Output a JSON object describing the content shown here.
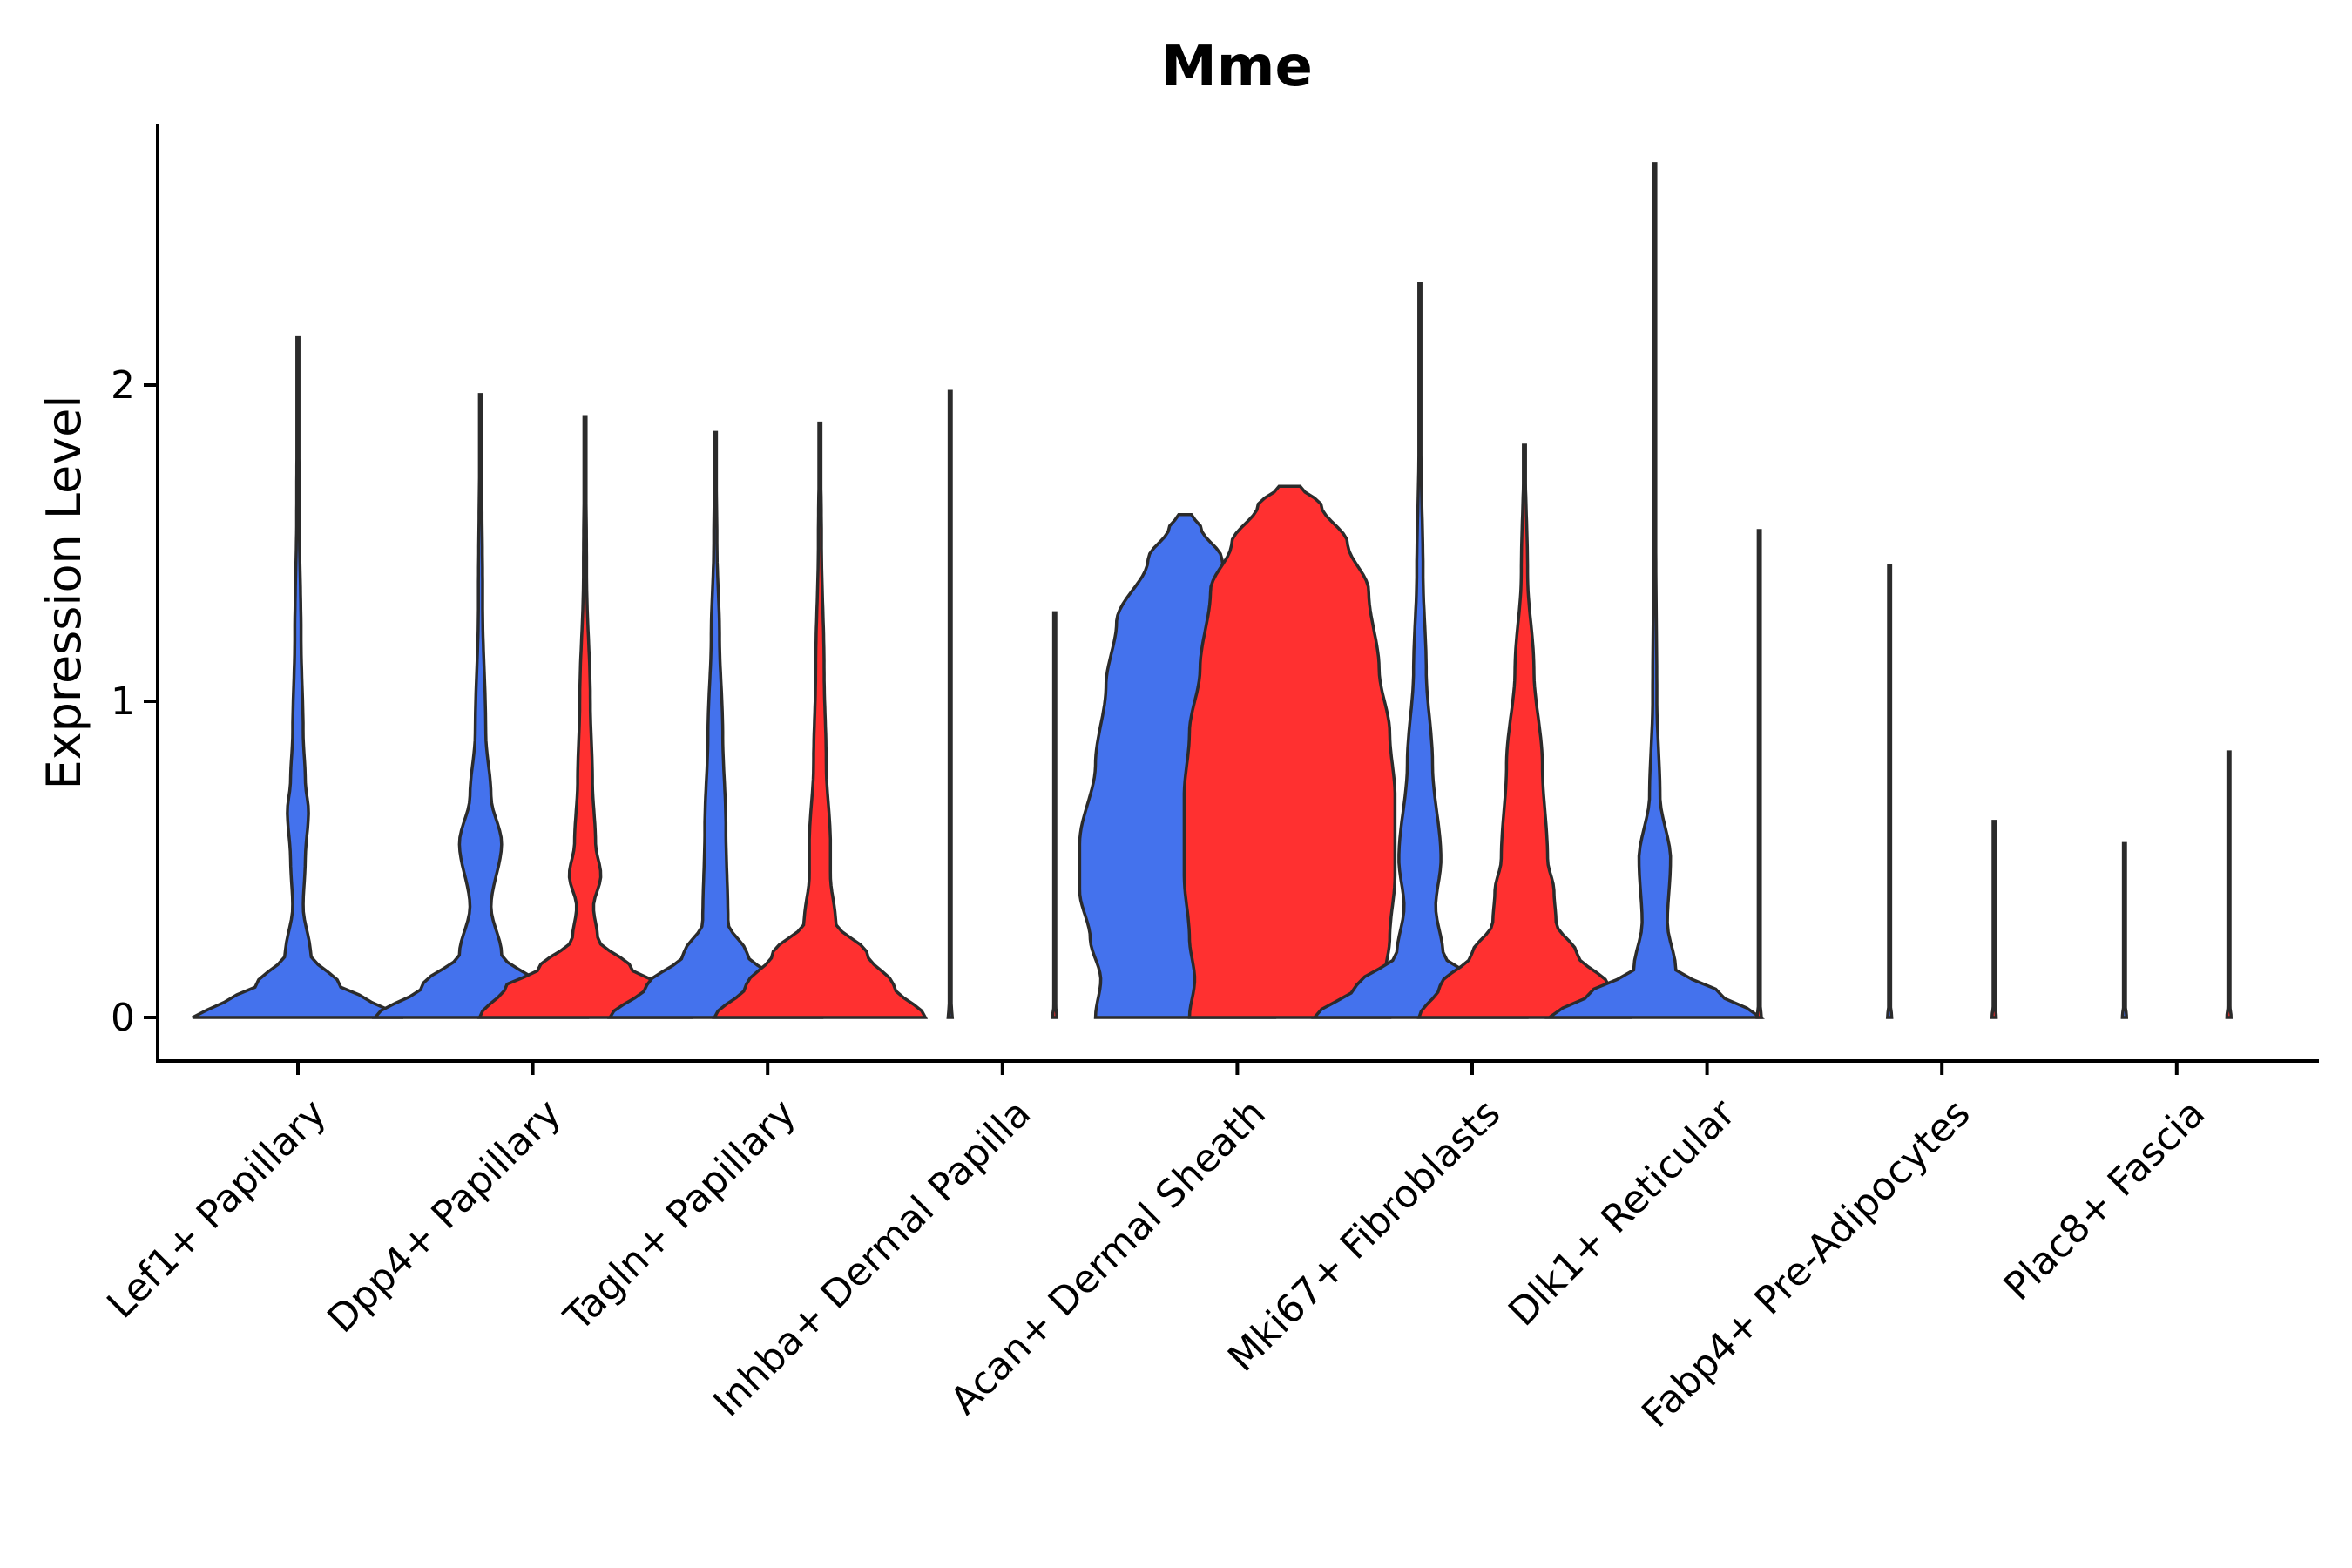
{
  "chart_data": {
    "type": "violin",
    "title": "Mme",
    "xlabel": "",
    "ylabel": "Expression Level",
    "ylim": [
      -0.13,
      2.85
    ],
    "yticks": [
      0,
      1,
      2
    ],
    "ytick_labels": [
      "0",
      "1",
      "2"
    ],
    "categories": [
      "Lef1+ Papillary",
      "Dpp4+ Papillary",
      "Tagln+ Papillary",
      "Inhba+ Dermal Papilla",
      "Acan+ Dermal Sheath",
      "Mki67+ Fibroblasts",
      "Dlk1+ Reticular",
      "Fabp4+ Pre-Adipocytes",
      "Plac8+ Fascia"
    ],
    "series_colors": {
      "blue": "#4472ed",
      "red": "#ff3030"
    },
    "violins": [
      {
        "category": 0,
        "side": "single",
        "color": "blue",
        "max": 2.15,
        "profile": [
          [
            0,
            1
          ],
          [
            0.05,
            0.7
          ],
          [
            0.1,
            0.4
          ],
          [
            0.2,
            0.12
          ],
          [
            0.35,
            0.05
          ],
          [
            0.5,
            0.07
          ],
          [
            0.65,
            0.1
          ],
          [
            0.75,
            0.07
          ],
          [
            0.9,
            0.05
          ],
          [
            1.2,
            0.03
          ],
          [
            1.6,
            0.012
          ],
          [
            2.15,
            0.004
          ]
        ]
      },
      {
        "category": 1,
        "side": "left",
        "color": "blue",
        "max": 1.97,
        "profile": [
          [
            0,
            1
          ],
          [
            0.1,
            0.55
          ],
          [
            0.2,
            0.2
          ],
          [
            0.35,
            0.1
          ],
          [
            0.55,
            0.2
          ],
          [
            0.7,
            0.1
          ],
          [
            0.9,
            0.05
          ],
          [
            1.3,
            0.02
          ],
          [
            1.97,
            0.005
          ]
        ]
      },
      {
        "category": 1,
        "side": "right",
        "color": "red",
        "max": 1.9,
        "profile": [
          [
            0,
            1
          ],
          [
            0.1,
            0.75
          ],
          [
            0.15,
            0.45
          ],
          [
            0.25,
            0.12
          ],
          [
            0.35,
            0.08
          ],
          [
            0.45,
            0.15
          ],
          [
            0.55,
            0.1
          ],
          [
            0.75,
            0.07
          ],
          [
            1.0,
            0.05
          ],
          [
            1.4,
            0.015
          ],
          [
            1.9,
            0.004
          ]
        ]
      },
      {
        "category": 2,
        "side": "left",
        "color": "blue",
        "max": 1.85,
        "profile": [
          [
            0,
            1
          ],
          [
            0.1,
            0.65
          ],
          [
            0.2,
            0.3
          ],
          [
            0.3,
            0.12
          ],
          [
            0.6,
            0.1
          ],
          [
            0.9,
            0.07
          ],
          [
            1.2,
            0.04
          ],
          [
            1.5,
            0.015
          ],
          [
            1.85,
            0.004
          ]
        ]
      },
      {
        "category": 2,
        "side": "right",
        "color": "red",
        "max": 1.88,
        "profile": [
          [
            0,
            1
          ],
          [
            0.1,
            0.7
          ],
          [
            0.2,
            0.45
          ],
          [
            0.3,
            0.15
          ],
          [
            0.45,
            0.1
          ],
          [
            0.55,
            0.1
          ],
          [
            0.8,
            0.06
          ],
          [
            1.1,
            0.04
          ],
          [
            1.5,
            0.015
          ],
          [
            1.88,
            0.004
          ]
        ]
      },
      {
        "category": 3,
        "side": "left",
        "color": "blue",
        "max": 1.98,
        "profile": [
          [
            0,
            0.02
          ],
          [
            0.05,
            0.005
          ],
          [
            1.98,
            0.002
          ]
        ]
      },
      {
        "category": 3,
        "side": "right",
        "color": "red",
        "max": 1.28,
        "profile": [
          [
            0,
            0.02
          ],
          [
            0.05,
            0.005
          ],
          [
            1.28,
            0.002
          ]
        ]
      },
      {
        "category": 4,
        "side": "left",
        "color": "blue",
        "max": 1.59,
        "profile": [
          [
            0,
            0.85
          ],
          [
            0.12,
            0.8
          ],
          [
            0.25,
            0.9
          ],
          [
            0.4,
            1.0
          ],
          [
            0.55,
            1.0
          ],
          [
            0.8,
            0.85
          ],
          [
            1.05,
            0.75
          ],
          [
            1.25,
            0.65
          ],
          [
            1.45,
            0.35
          ],
          [
            1.55,
            0.15
          ],
          [
            1.59,
            0.06
          ]
        ]
      },
      {
        "category": 4,
        "side": "right",
        "color": "red",
        "max": 1.68,
        "profile": [
          [
            0,
            0.95
          ],
          [
            0.12,
            0.9
          ],
          [
            0.25,
            0.95
          ],
          [
            0.45,
            1.0
          ],
          [
            0.7,
            1.0
          ],
          [
            0.9,
            0.95
          ],
          [
            1.1,
            0.85
          ],
          [
            1.35,
            0.75
          ],
          [
            1.5,
            0.55
          ],
          [
            1.62,
            0.3
          ],
          [
            1.68,
            0.1
          ]
        ]
      },
      {
        "category": 5,
        "side": "left",
        "color": "blue",
        "max": 2.32,
        "profile": [
          [
            0,
            1
          ],
          [
            0.1,
            0.6
          ],
          [
            0.2,
            0.22
          ],
          [
            0.35,
            0.15
          ],
          [
            0.5,
            0.2
          ],
          [
            0.8,
            0.12
          ],
          [
            1.1,
            0.06
          ],
          [
            1.4,
            0.03
          ],
          [
            1.8,
            0.01
          ],
          [
            2.32,
            0.003
          ]
        ]
      },
      {
        "category": 5,
        "side": "right",
        "color": "red",
        "max": 1.81,
        "profile": [
          [
            0,
            1
          ],
          [
            0.1,
            0.8
          ],
          [
            0.2,
            0.5
          ],
          [
            0.3,
            0.3
          ],
          [
            0.4,
            0.28
          ],
          [
            0.5,
            0.22
          ],
          [
            0.8,
            0.17
          ],
          [
            1.1,
            0.09
          ],
          [
            1.4,
            0.03
          ],
          [
            1.81,
            0.004
          ]
        ]
      },
      {
        "category": 6,
        "side": "left",
        "color": "blue",
        "max": 2.7,
        "profile": [
          [
            0,
            1
          ],
          [
            0.08,
            0.6
          ],
          [
            0.15,
            0.2
          ],
          [
            0.3,
            0.12
          ],
          [
            0.5,
            0.15
          ],
          [
            0.7,
            0.05
          ],
          [
            1.0,
            0.02
          ],
          [
            1.5,
            0.01
          ],
          [
            2.0,
            0.005
          ],
          [
            2.7,
            0.002
          ]
        ]
      },
      {
        "category": 6,
        "side": "right",
        "color": "red",
        "max": 1.54,
        "profile": [
          [
            0,
            0.02
          ],
          [
            0.05,
            0.005
          ],
          [
            1.54,
            0.002
          ]
        ]
      },
      {
        "category": 7,
        "side": "left",
        "color": "blue",
        "max": 1.43,
        "profile": [
          [
            0,
            0.02
          ],
          [
            0.05,
            0.005
          ],
          [
            1.43,
            0.002
          ]
        ]
      },
      {
        "category": 7,
        "side": "right",
        "color": "red",
        "max": 0.62,
        "profile": [
          [
            0,
            0.02
          ],
          [
            0.05,
            0.005
          ],
          [
            0.62,
            0.003
          ]
        ]
      },
      {
        "category": 8,
        "side": "left",
        "color": "blue",
        "max": 0.55,
        "profile": [
          [
            0,
            0.02
          ],
          [
            0.05,
            0.005
          ],
          [
            0.55,
            0.003
          ]
        ]
      },
      {
        "category": 8,
        "side": "right",
        "color": "red",
        "max": 0.84,
        "profile": [
          [
            0,
            0.02
          ],
          [
            0.05,
            0.005
          ],
          [
            0.84,
            0.002
          ]
        ]
      }
    ]
  }
}
